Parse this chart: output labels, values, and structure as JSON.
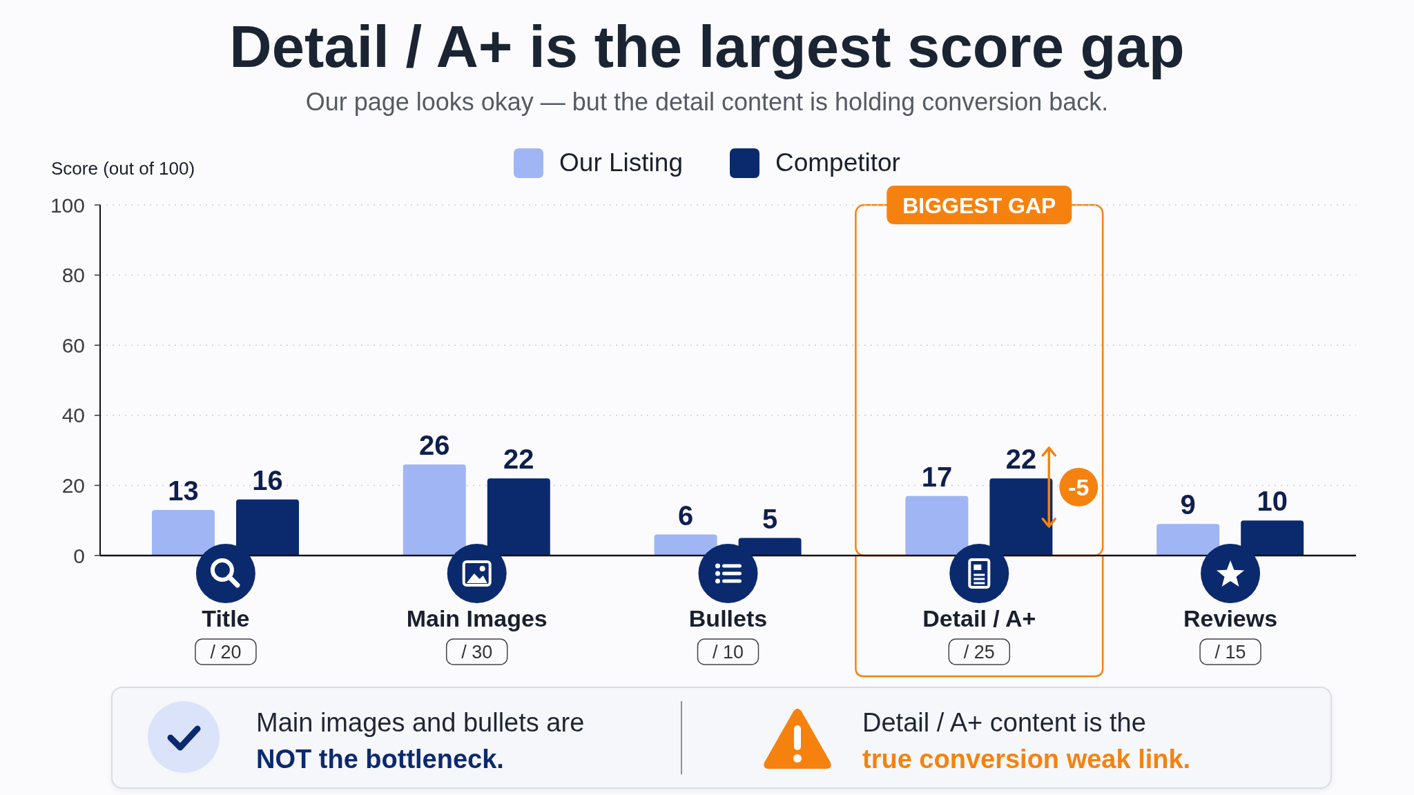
{
  "chart_data": {
    "type": "bar",
    "title": "Detail / A+ is the largest score gap",
    "subtitle": "Our page looks okay — but the detail content is holding conversion back.",
    "ylabel": "Score (out of 100)",
    "categories": [
      "Title",
      "Main Images",
      "Bullets",
      "Detail / A+",
      "Reviews"
    ],
    "series": [
      {
        "name": "Our Listing",
        "color": "#a0b5f3",
        "values": [
          13,
          26,
          6,
          17,
          9
        ]
      },
      {
        "name": "Competitor",
        "color": "#0b2a6e",
        "values": [
          16,
          22,
          5,
          22,
          10
        ]
      }
    ],
    "ylim": [
      0,
      100
    ],
    "yticks": [
      0,
      20,
      40,
      60,
      80,
      100
    ],
    "grid": "y",
    "legend": "top",
    "data_labels": true,
    "bands": [
      {
        "axis": "x",
        "from": "Detail / A+",
        "to": "Detail / A+",
        "label": "BIGGEST GAP",
        "color": "#f5820f"
      }
    ],
    "annotations": [
      "/ 20",
      "/ 30",
      "/ 10",
      "/ 25",
      "/ 15",
      "-5",
      "Main images and bullets are",
      "NOT the bottleneck.",
      "Detail / A+ content is the",
      "true conversion weak link."
    ]
  }
}
